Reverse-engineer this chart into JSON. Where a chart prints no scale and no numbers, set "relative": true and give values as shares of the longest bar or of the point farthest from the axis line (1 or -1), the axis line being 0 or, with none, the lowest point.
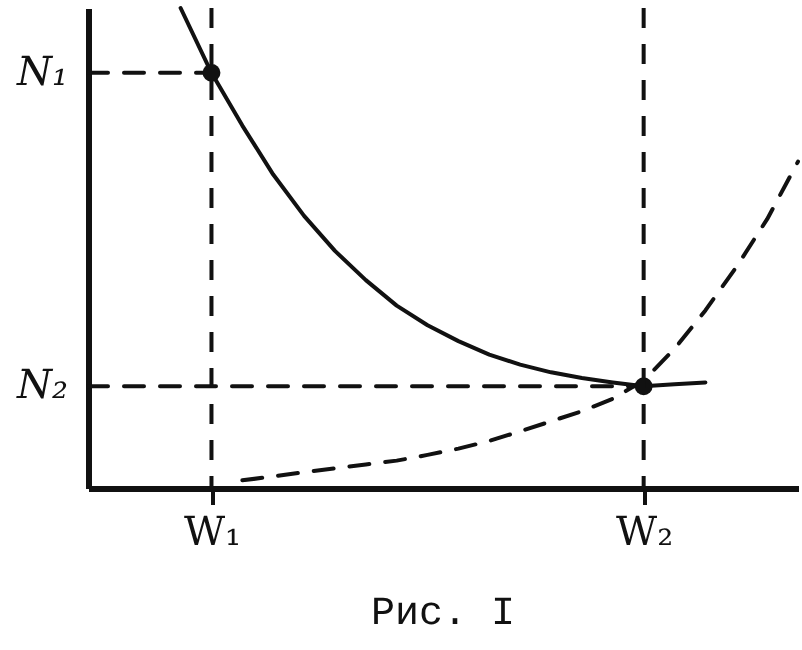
{
  "chart_data": {
    "type": "line",
    "relative": true,
    "legend": false,
    "categories": [
      null,
      null,
      null,
      null,
      "W₁",
      null,
      null,
      null,
      null,
      null,
      null,
      null,
      null,
      null,
      null,
      null,
      null,
      null,
      "W₂",
      null,
      null,
      null,
      null,
      null
    ],
    "annotations": [
      "Рис. I"
    ],
    "ref_lines": [
      {
        "axis": "x",
        "value": "W₁",
        "line_style": "dashed"
      },
      {
        "axis": "x",
        "value": "W₂",
        "line_style": "dashed"
      }
    ],
    "series": [
      {
        "color": "#111111",
        "line_style": "solid",
        "values": [
          null,
          null,
          null,
          1.0,
          0.865,
          0.755,
          0.653,
          0.567,
          0.494,
          0.433,
          0.38,
          0.339,
          0.306,
          0.278,
          0.257,
          0.241,
          0.229,
          0.22,
          0.212,
          0.216,
          0.22,
          null,
          null,
          null
        ]
      },
      {
        "color": "#111111",
        "line_style": "dashed",
        "values": [
          null,
          null,
          null,
          null,
          null,
          0.016,
          0.024,
          0.033,
          0.041,
          0.049,
          0.057,
          0.069,
          0.082,
          0.098,
          0.118,
          0.139,
          0.16,
          0.186,
          0.224,
          0.29,
          0.37,
          0.46,
          0.56,
          0.68
        ]
      },
      {
        "name": "N₁",
        "color": "#111111",
        "line_style": "dashed",
        "values": [
          0.865,
          0.865,
          0.865,
          0.865,
          0.865,
          null,
          null,
          null,
          null,
          null,
          null,
          null,
          null,
          null,
          null,
          null,
          null,
          null,
          null,
          null,
          null,
          null,
          null,
          null
        ]
      },
      {
        "name": "N₂",
        "color": "#111111",
        "line_style": "dashed",
        "values": [
          0.212,
          0.212,
          0.212,
          0.212,
          0.212,
          0.212,
          0.212,
          0.212,
          0.212,
          0.212,
          0.212,
          0.212,
          0.212,
          0.212,
          0.212,
          0.212,
          0.212,
          0.212,
          0.212,
          null,
          null,
          null,
          null,
          null
        ]
      },
      {
        "type": "scatter",
        "marker": "circle",
        "color": "#111111",
        "values": [
          null,
          null,
          null,
          null,
          0.865,
          null,
          null,
          null,
          null,
          null,
          null,
          null,
          null,
          null,
          null,
          null,
          null,
          null,
          0.212,
          null,
          null,
          null,
          null,
          null
        ]
      }
    ]
  }
}
